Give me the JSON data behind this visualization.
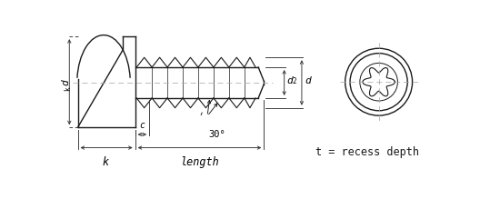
{
  "bg_color": "#ffffff",
  "line_color": "#1a1a1a",
  "dim_color": "#333333",
  "center_color": "#aaaaaa",
  "fig_width": 5.5,
  "fig_height": 2.19,
  "dpi": 100,
  "label_t": "t = recess depth",
  "label_30": "30°",
  "label_c": "c",
  "label_k": "k",
  "label_length": "length",
  "label_dk": "d",
  "label_dk_sub": "k",
  "label_d2": "d",
  "label_d2_sub": "2",
  "label_d": "d"
}
